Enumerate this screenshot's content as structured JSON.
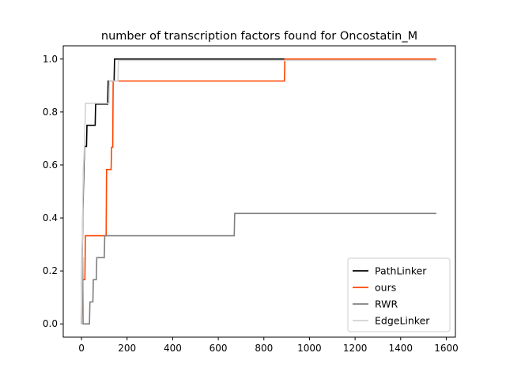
{
  "chart_data": {
    "type": "line",
    "title": "number of transcription factors found for Oncostatin_M",
    "xlabel": "",
    "ylabel": "",
    "xlim": [
      -80,
      1640
    ],
    "ylim": [
      -0.05,
      1.05
    ],
    "x_ticks": [
      0,
      200,
      400,
      600,
      800,
      1000,
      1200,
      1400,
      1600
    ],
    "y_ticks": [
      0.0,
      0.2,
      0.4,
      0.6,
      0.8,
      1.0
    ],
    "x_tick_labels": [
      "0",
      "200",
      "400",
      "600",
      "800",
      "1000",
      "1200",
      "1400",
      "1600"
    ],
    "y_tick_labels": [
      "0.0",
      "0.2",
      "0.4",
      "0.6",
      "0.8",
      "1.0"
    ],
    "grid": false,
    "legend_position": "lower-right",
    "series": [
      {
        "name": "PathLinker",
        "color": "#000000",
        "points": [
          [
            0,
            0
          ],
          [
            3,
            0.25
          ],
          [
            6,
            0.42
          ],
          [
            10,
            0.58
          ],
          [
            14,
            0.67
          ],
          [
            22,
            0.67
          ],
          [
            24,
            0.75
          ],
          [
            60,
            0.75
          ],
          [
            62,
            0.83
          ],
          [
            115,
            0.83
          ],
          [
            117,
            0.917
          ],
          [
            143,
            0.917
          ],
          [
            145,
            1.0
          ],
          [
            1556,
            1.0
          ]
        ]
      },
      {
        "name": "ours",
        "color": "#ff4500",
        "points": [
          [
            0,
            0
          ],
          [
            5,
            0.167
          ],
          [
            15,
            0.167
          ],
          [
            17,
            0.333
          ],
          [
            108,
            0.333
          ],
          [
            110,
            0.583
          ],
          [
            130,
            0.583
          ],
          [
            132,
            0.667
          ],
          [
            137,
            0.667
          ],
          [
            139,
            0.917
          ],
          [
            890,
            0.917
          ],
          [
            892,
            1.0
          ],
          [
            1556,
            1.0
          ]
        ]
      },
      {
        "name": "RWR",
        "color": "#808080",
        "points": [
          [
            0,
            0
          ],
          [
            2,
            0.25
          ],
          [
            5,
            0.25
          ],
          [
            7,
            0
          ],
          [
            35,
            0
          ],
          [
            37,
            0.083
          ],
          [
            50,
            0.083
          ],
          [
            52,
            0.167
          ],
          [
            65,
            0.167
          ],
          [
            67,
            0.25
          ],
          [
            100,
            0.25
          ],
          [
            102,
            0.333
          ],
          [
            670,
            0.333
          ],
          [
            672,
            0.417
          ],
          [
            1556,
            0.417
          ]
        ]
      },
      {
        "name": "EdgeLinker",
        "color": "#d3d3d3",
        "points": [
          [
            0,
            0
          ],
          [
            4,
            0.333
          ],
          [
            8,
            0.583
          ],
          [
            13,
            0.667
          ],
          [
            18,
            0.833
          ],
          [
            120,
            0.833
          ],
          [
            122,
            0.917
          ],
          [
            160,
            0.917
          ],
          [
            162,
            0.995
          ],
          [
            1556,
            0.995
          ]
        ]
      }
    ]
  }
}
